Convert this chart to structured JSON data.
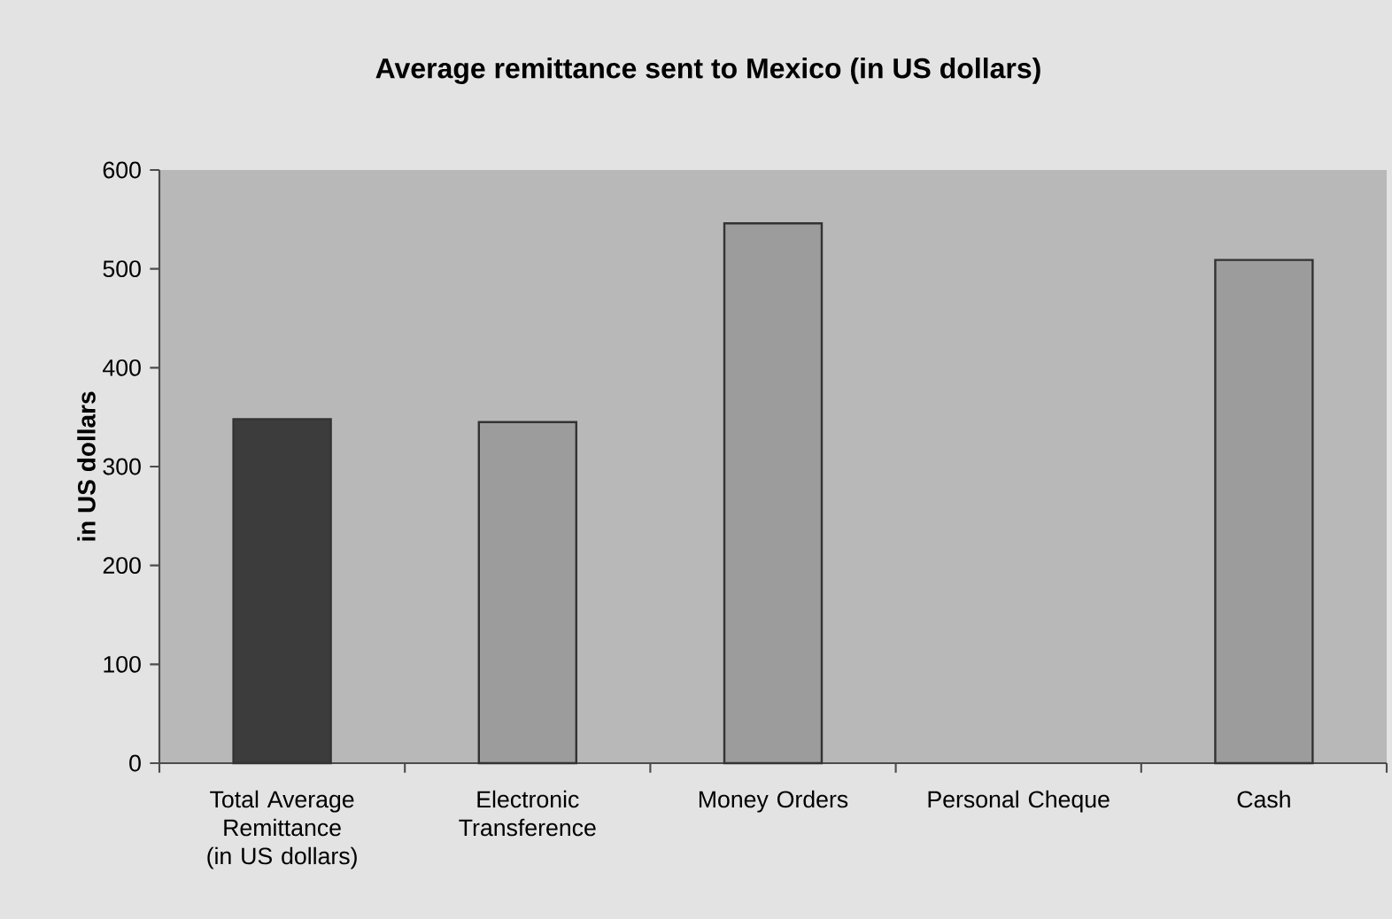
{
  "chart_data": {
    "type": "bar",
    "title": "Average remittance sent to Mexico (in US dollars)",
    "ylabel": "in US dollars",
    "categories": [
      "Total Average Remittance (in US dollars)",
      "Electronic Transference",
      "Money Orders",
      "Personal Cheque",
      "Cash"
    ],
    "values": [
      348,
      345,
      546,
      null,
      509
    ],
    "colors": [
      "#3c3c3c",
      "#9c9c9c",
      "#9c9c9c",
      "#9c9c9c",
      "#9c9c9c"
    ],
    "ylim": [
      0,
      600
    ],
    "yticks": [
      0,
      100,
      200,
      300,
      400,
      500,
      600
    ],
    "grid": false
  }
}
